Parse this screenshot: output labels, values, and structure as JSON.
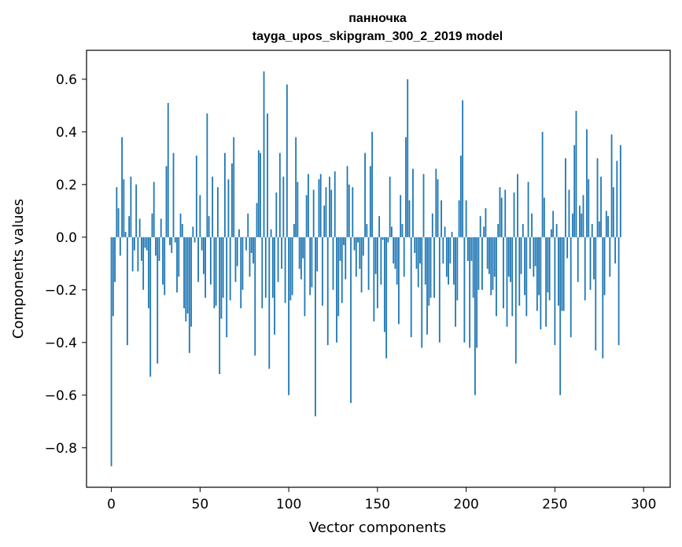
{
  "chart_data": {
    "type": "bar",
    "title": "панночка",
    "subtitle": "tayga_upos_skipgram_300_2_2019 model",
    "xlabel": "Vector components",
    "ylabel": "Components values",
    "xlim": [
      -14,
      315
    ],
    "ylim": [
      -0.95,
      0.71
    ],
    "xticks": [
      0,
      50,
      100,
      150,
      200,
      250,
      300
    ],
    "yticks": [
      -0.8,
      -0.6,
      -0.4,
      -0.2,
      0.0,
      0.2,
      0.4,
      0.6
    ],
    "ytick_labels": [
      "−0.8",
      "−0.6",
      "−0.4",
      "−0.2",
      "0.0",
      "0.2",
      "0.4",
      "0.6"
    ],
    "grid": false,
    "bar_color": "#1f77b4",
    "x_start": 0,
    "values": [
      -0.87,
      -0.3,
      -0.17,
      0.19,
      0.11,
      -0.07,
      0.38,
      0.22,
      0.02,
      -0.41,
      0.08,
      0.23,
      -0.13,
      -0.05,
      0.2,
      -0.13,
      0.07,
      -0.09,
      -0.2,
      -0.04,
      -0.05,
      -0.27,
      -0.53,
      0.09,
      0.21,
      -0.07,
      -0.48,
      -0.09,
      0.07,
      -0.18,
      -0.22,
      0.27,
      0.51,
      -0.03,
      -0.06,
      0.32,
      -0.02,
      -0.21,
      -0.15,
      0.09,
      0.05,
      -0.27,
      -0.32,
      -0.29,
      -0.44,
      -0.34,
      0.04,
      -0.02,
      0.31,
      -0.17,
      0.16,
      -0.05,
      -0.14,
      -0.23,
      0.47,
      0.08,
      -0.18,
      0.23,
      -0.27,
      -0.26,
      0.19,
      -0.52,
      -0.31,
      -0.23,
      0.32,
      -0.38,
      0.22,
      -0.24,
      0.28,
      0.38,
      -0.17,
      -0.11,
      0.03,
      -0.27,
      -0.2,
      0.0,
      -0.05,
      0.09,
      -0.15,
      -0.06,
      -0.1,
      -0.45,
      0.13,
      0.33,
      0.32,
      -0.27,
      0.63,
      -0.23,
      0.47,
      -0.5,
      0.03,
      -0.23,
      -0.37,
      0.17,
      -0.17,
      0.32,
      -0.12,
      0.23,
      -0.25,
      0.58,
      -0.6,
      -0.24,
      -0.22,
      0.05,
      0.38,
      0.21,
      -0.12,
      -0.16,
      -0.08,
      -0.3,
      0.16,
      0.24,
      -0.22,
      -0.19,
      0.18,
      -0.68,
      -0.13,
      0.22,
      0.24,
      -0.26,
      0.12,
      0.19,
      -0.41,
      0.23,
      0.18,
      -0.2,
      0.25,
      -0.4,
      -0.3,
      -0.09,
      -0.25,
      -0.03,
      -0.16,
      0.27,
      0.2,
      -0.63,
      0.19,
      -0.05,
      -0.15,
      -0.02,
      -0.12,
      -0.21,
      -0.07,
      0.32,
      0.05,
      -0.2,
      0.27,
      0.4,
      -0.32,
      -0.14,
      -0.27,
      0.08,
      -0.18,
      -0.01,
      -0.36,
      -0.46,
      -0.02,
      0.23,
      0.04,
      -0.1,
      -0.12,
      -0.18,
      -0.33,
      0.16,
      0.05,
      -0.15,
      0.38,
      0.6,
      0.14,
      -0.38,
      0.26,
      -0.06,
      -0.12,
      -0.19,
      -0.1,
      -0.42,
      0.24,
      -0.18,
      -0.37,
      -0.26,
      -0.23,
      0.09,
      -0.23,
      0.26,
      0.22,
      -0.4,
      0.14,
      -0.1,
      0.04,
      -0.15,
      -0.18,
      -0.1,
      0.02,
      -0.18,
      -0.34,
      -0.24,
      0.14,
      0.31,
      0.52,
      -0.4,
      0.14,
      -0.09,
      -0.42,
      -0.09,
      -0.23,
      -0.6,
      -0.42,
      -0.2,
      0.08,
      -0.2,
      0.04,
      0.11,
      -0.12,
      -0.14,
      -0.22,
      -0.2,
      -0.15,
      -0.3,
      0.05,
      0.19,
      0.15,
      -0.27,
      0.18,
      -0.34,
      -0.15,
      -0.17,
      -0.3,
      0.17,
      -0.48,
      0.24,
      -0.26,
      -0.14,
      0.05,
      -0.22,
      -0.3,
      0.21,
      -0.12,
      0.09,
      -0.15,
      -0.11,
      -0.28,
      -0.22,
      -0.35,
      0.4,
      0.15,
      -0.34,
      -0.21,
      -0.24,
      0.03,
      0.1,
      -0.41,
      0.05,
      -0.26,
      -0.6,
      -0.28,
      -0.28,
      0.3,
      -0.08,
      0.18,
      -0.38,
      0.09,
      0.35,
      0.48,
      -0.17,
      0.12,
      0.09,
      0.16,
      -0.24,
      0.41,
      0.22,
      -0.2,
      0.05,
      -0.16,
      -0.43,
      0.3,
      0.06,
      0.23,
      -0.46,
      -0.22,
      0.1,
      0.08,
      -0.15,
      0.39,
      0.19,
      -0.1,
      0.29,
      -0.41,
      0.35
    ]
  }
}
